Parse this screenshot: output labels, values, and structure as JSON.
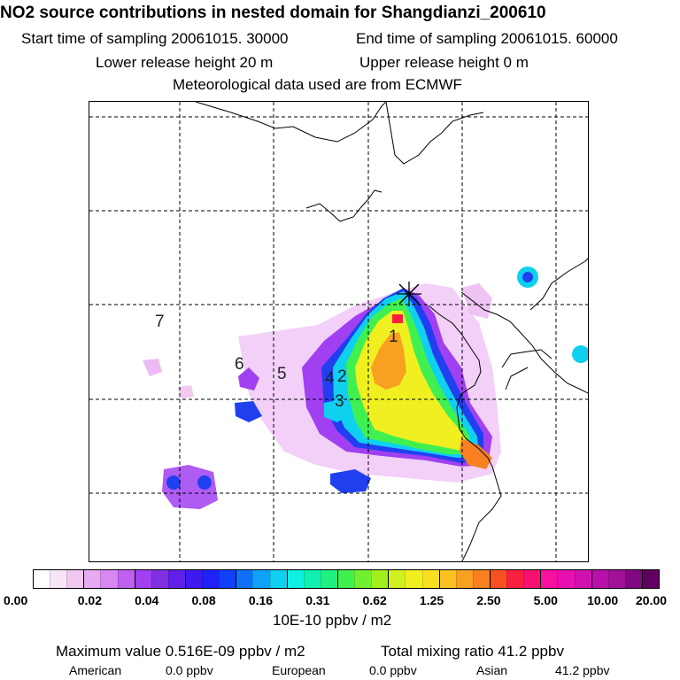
{
  "header": {
    "title": "NO2 source contributions in nested domain for Shangdianzi_200610",
    "start_label": "Start time of sampling 20061015. 30000",
    "end_label": "End time of sampling 20061015. 60000",
    "lower_label": "Lower release height   20 m",
    "upper_label": "Upper release height    0 m",
    "met_label": "Meteorological data used are from ECMWF"
  },
  "map": {
    "source_labels": [
      "1",
      "2",
      "3",
      "4",
      "5",
      "6",
      "7"
    ],
    "receptor_marker": "asterisk-star"
  },
  "colorbar": {
    "ticks": [
      "0.00",
      "0.02",
      "0.04",
      "0.08",
      "0.16",
      "0.31",
      "0.62",
      "1.25",
      "2.50",
      "5.00",
      "10.00",
      "20.00"
    ],
    "unit_label": "10E-10 ppbv / m2",
    "colors": [
      "#ffffff",
      "#f8e6f8",
      "#f0c8f0",
      "#e8aaf0",
      "#d888f0",
      "#c060f0",
      "#a040f0",
      "#8030e0",
      "#6020e8",
      "#4018f0",
      "#2020f8",
      "#1040f8",
      "#1070f8",
      "#10a0f8",
      "#10d0f0",
      "#10f0e0",
      "#10f0b0",
      "#20f080",
      "#40f050",
      "#70f030",
      "#a0f020",
      "#d0f020",
      "#f0f020",
      "#f8e020",
      "#f8c020",
      "#f8a020",
      "#f88020",
      "#f85020",
      "#f82040",
      "#f81070",
      "#f810a0",
      "#e810b0",
      "#d010b0",
      "#b810a8",
      "#a01098",
      "#800880",
      "#600060"
    ]
  },
  "footer": {
    "max_label": "Maximum value  0.516E-09 ppbv / m2",
    "total_label": "Total mixing ratio      41.2 ppbv",
    "american_name": "American",
    "american_value": "0.0 ppbv",
    "european_name": "European",
    "european_value": "0.0 ppbv",
    "asian_name": "Asian",
    "asian_value": "41.2 ppbv"
  }
}
